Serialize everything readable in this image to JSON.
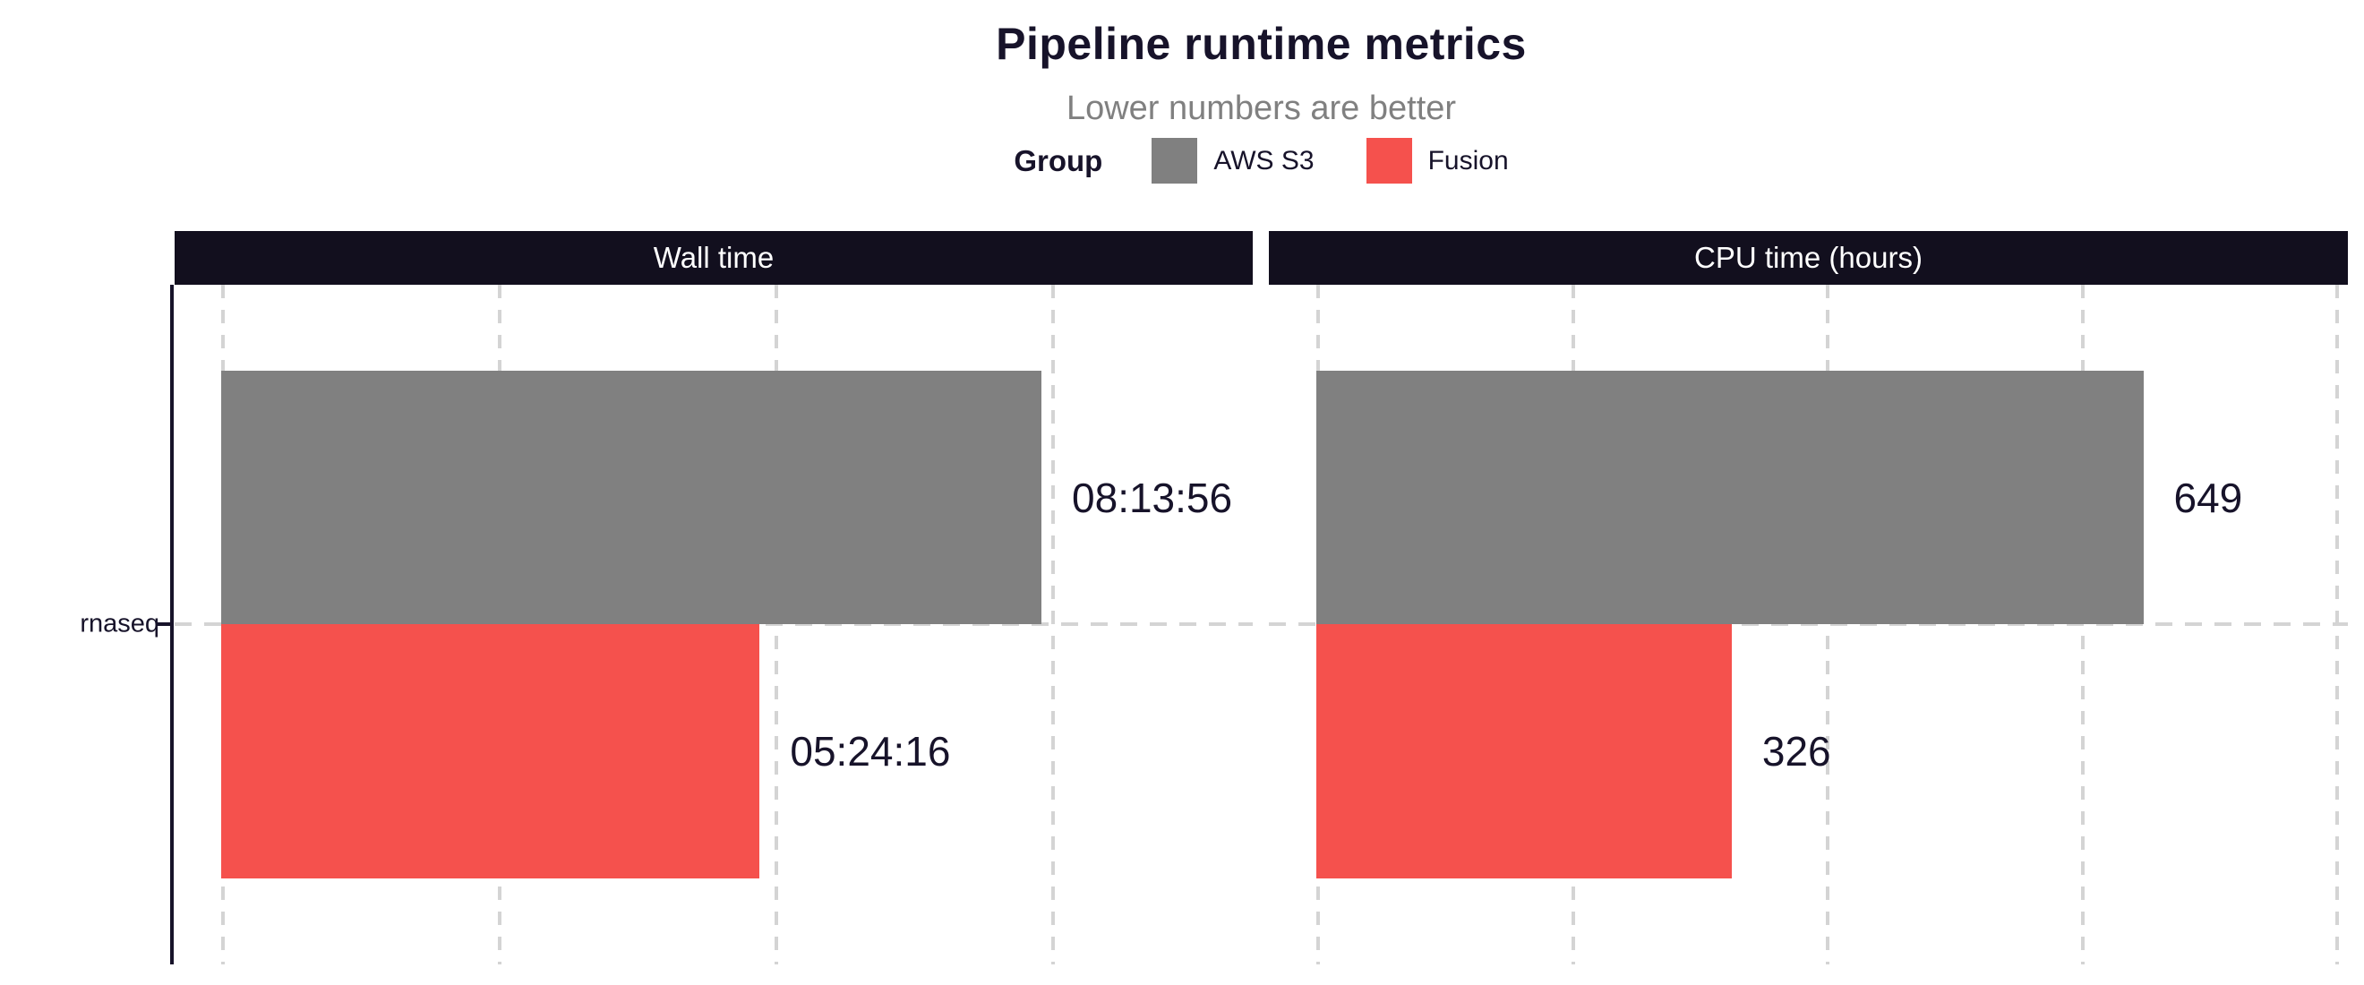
{
  "header": {
    "title": "Pipeline runtime metrics",
    "subtitle": "Lower numbers are better",
    "legend": {
      "title": "Group",
      "items": [
        {
          "label": "AWS S3",
          "color": "#808080"
        },
        {
          "label": "Fusion",
          "color": "#F5514D"
        }
      ]
    }
  },
  "y_axis": {
    "tick_label": "rnaseq"
  },
  "colors": {
    "title_text": "#17132A",
    "subtitle_text": "#808080",
    "strip_background": "#120F1E",
    "strip_text": "#FFFFFF",
    "gridline": "#D4D4D4",
    "axis_line": "#17132A",
    "bar_label_text": "#17132A",
    "aws_s3": "#808080",
    "fusion": "#F5514D"
  },
  "chart_data": [
    {
      "type": "bar",
      "orientation": "horizontal",
      "facet_title": "Wall time",
      "categories": [
        "rnaseq"
      ],
      "unit": "hh:mm:ss (seconds)",
      "series": [
        {
          "name": "AWS S3",
          "color": "#808080",
          "values": [
            29636
          ],
          "value_labels": [
            "08:13:56"
          ]
        },
        {
          "name": "Fusion",
          "color": "#F5514D",
          "values": [
            19456
          ],
          "value_labels": [
            "05:24:16"
          ]
        }
      ],
      "x_range": [
        0,
        37270
      ],
      "gridlines_x": [
        0,
        10000,
        20000,
        30000
      ],
      "grid": "dashed",
      "legend_position": "top"
    },
    {
      "type": "bar",
      "orientation": "horizontal",
      "facet_title": "CPU time (hours)",
      "categories": [
        "rnaseq"
      ],
      "unit": "hours",
      "series": [
        {
          "name": "AWS S3",
          "color": "#808080",
          "values": [
            649
          ],
          "value_labels": [
            "649"
          ]
        },
        {
          "name": "Fusion",
          "color": "#F5514D",
          "values": [
            326
          ],
          "value_labels": [
            "326"
          ]
        }
      ],
      "x_range": [
        0,
        818
      ],
      "gridlines_x": [
        0,
        200,
        400,
        600,
        800
      ],
      "grid": "dashed",
      "legend_position": "top"
    }
  ]
}
